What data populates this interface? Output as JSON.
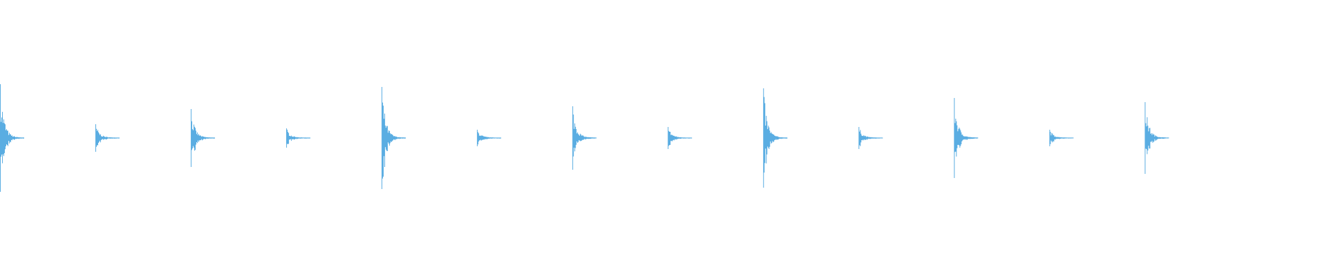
{
  "chart_data": {
    "type": "waveform",
    "x": [
      0,
      1,
      2,
      3,
      4,
      5,
      6,
      7,
      8,
      9,
      10,
      11,
      12
    ],
    "values": [
      0.39,
      0.1,
      0.21,
      0.07,
      0.37,
      0.06,
      0.23,
      0.08,
      0.36,
      0.08,
      0.29,
      0.06,
      0.26
    ],
    "xlim": [
      0,
      13.91
    ],
    "ylim": [
      -1,
      1
    ],
    "color": "#5aade2"
  }
}
